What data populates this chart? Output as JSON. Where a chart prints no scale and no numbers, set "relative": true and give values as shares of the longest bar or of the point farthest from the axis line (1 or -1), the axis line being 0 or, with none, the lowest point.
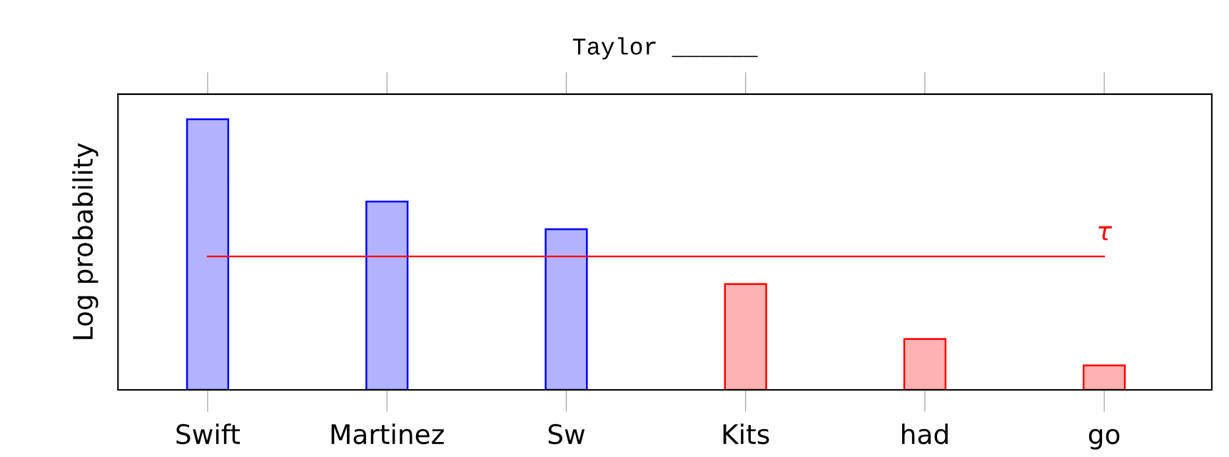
{
  "chart_data": {
    "type": "bar",
    "title": "Taylor ______",
    "ylabel": "Log probability",
    "relative": true,
    "categories": [
      "Swift",
      "Martinez",
      "Sw",
      "Kits",
      "had",
      "go"
    ],
    "values": [
      1,
      0.696,
      0.594,
      0.391,
      0.188,
      0.09
    ],
    "colors": [
      "#0000ff",
      "#0000ff",
      "#0000ff",
      "#ff0000",
      "#ff0000",
      "#ff0000"
    ],
    "ref_lines": [
      {
        "axis": "y",
        "value": 0.493,
        "label": "τ",
        "color": "#ff0000"
      }
    ],
    "grid": false,
    "legend": false
  }
}
